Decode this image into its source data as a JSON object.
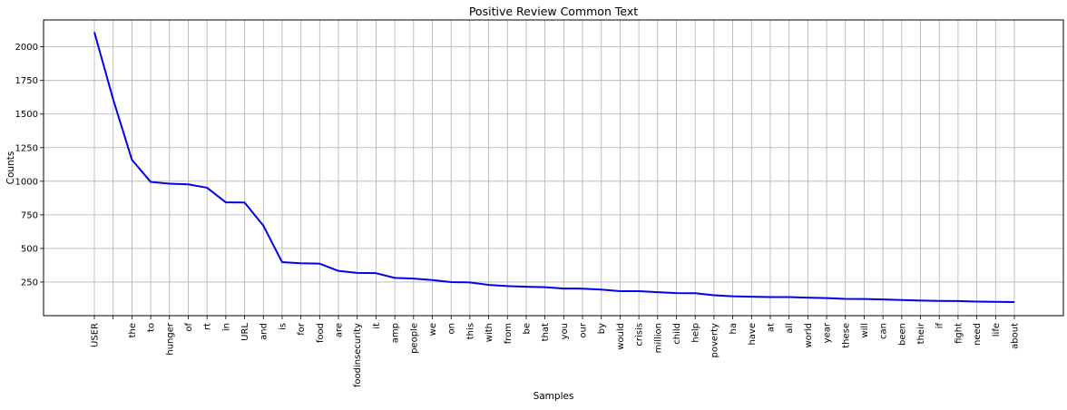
{
  "chart_data": {
    "type": "line",
    "title": "Positive Review Common Text",
    "xlabel": "Samples",
    "ylabel": "Counts",
    "categories": [
      "USER",
      "",
      "the",
      "to",
      "hunger",
      "of",
      "rt",
      "in",
      "URL",
      "and",
      "is",
      "for",
      "food",
      "are",
      "foodinsecurity",
      "it",
      "amp",
      "people",
      "we",
      "on",
      "this",
      "with",
      "from",
      "be",
      "that",
      "you",
      "our",
      "by",
      "would",
      "crisis",
      "million",
      "child",
      "help",
      "poverty",
      "ha",
      "have",
      "at",
      "all",
      "world",
      "year",
      "these",
      "will",
      "can",
      "been",
      "their",
      "if",
      "fight",
      "need",
      "life",
      "about"
    ],
    "series": [
      {
        "values": [
          2110,
          1610,
          1160,
          995,
          982,
          977,
          952,
          843,
          842,
          670,
          398,
          390,
          387,
          333,
          318,
          316,
          281,
          276,
          265,
          250,
          247,
          229,
          220,
          215,
          212,
          202,
          201,
          194,
          182,
          182,
          175,
          168,
          167,
          152,
          144,
          141,
          138,
          138,
          134,
          131,
          125,
          124,
          121,
          116,
          112,
          110,
          109,
          105,
          103,
          101
        ]
      }
    ],
    "ylim": [
      0,
      2200
    ],
    "yticks": [
      250,
      500,
      750,
      1000,
      1250,
      1500,
      1750,
      2000
    ],
    "ytick_labels": [
      "250",
      "500",
      "750",
      "1000",
      "1250",
      "1500",
      "1750",
      "2000"
    ],
    "grid": true,
    "colors": {
      "line": "#0000ee",
      "grid": "#b0b0b0",
      "axes": "#000000"
    }
  }
}
